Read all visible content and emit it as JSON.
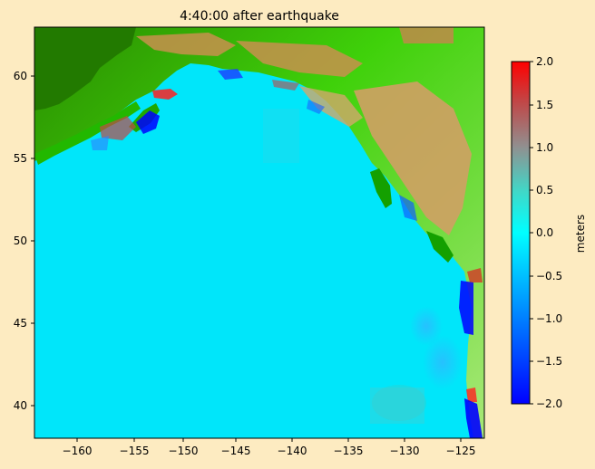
{
  "title": "4:40:00 after earthquake",
  "x_ticks": [
    "−160",
    "−155",
    "−150",
    "−145",
    "−140",
    "−135",
    "−130",
    "−125"
  ],
  "y_ticks": [
    "40",
    "45",
    "50",
    "55",
    "60"
  ],
  "colorbar": {
    "label": "meters",
    "ticks": [
      "−2.0",
      "−1.5",
      "−1.0",
      "−0.5",
      "0.0",
      "0.5",
      "1.0",
      "1.5",
      "2.0"
    ],
    "range": [
      -2.0,
      2.0
    ],
    "colors": [
      "#0000ff",
      "#00ffff",
      "#c04040",
      "#ff0000"
    ]
  },
  "map": {
    "region": "Gulf of Alaska / Pacific Northwest",
    "lon_range": [
      -163,
      -123
    ],
    "lat_range": [
      38,
      63
    ],
    "ocean_color": "#00eeff",
    "land_colors": [
      "#1f7a00",
      "#22c800",
      "#9cf070",
      "#c08a4a"
    ]
  }
}
